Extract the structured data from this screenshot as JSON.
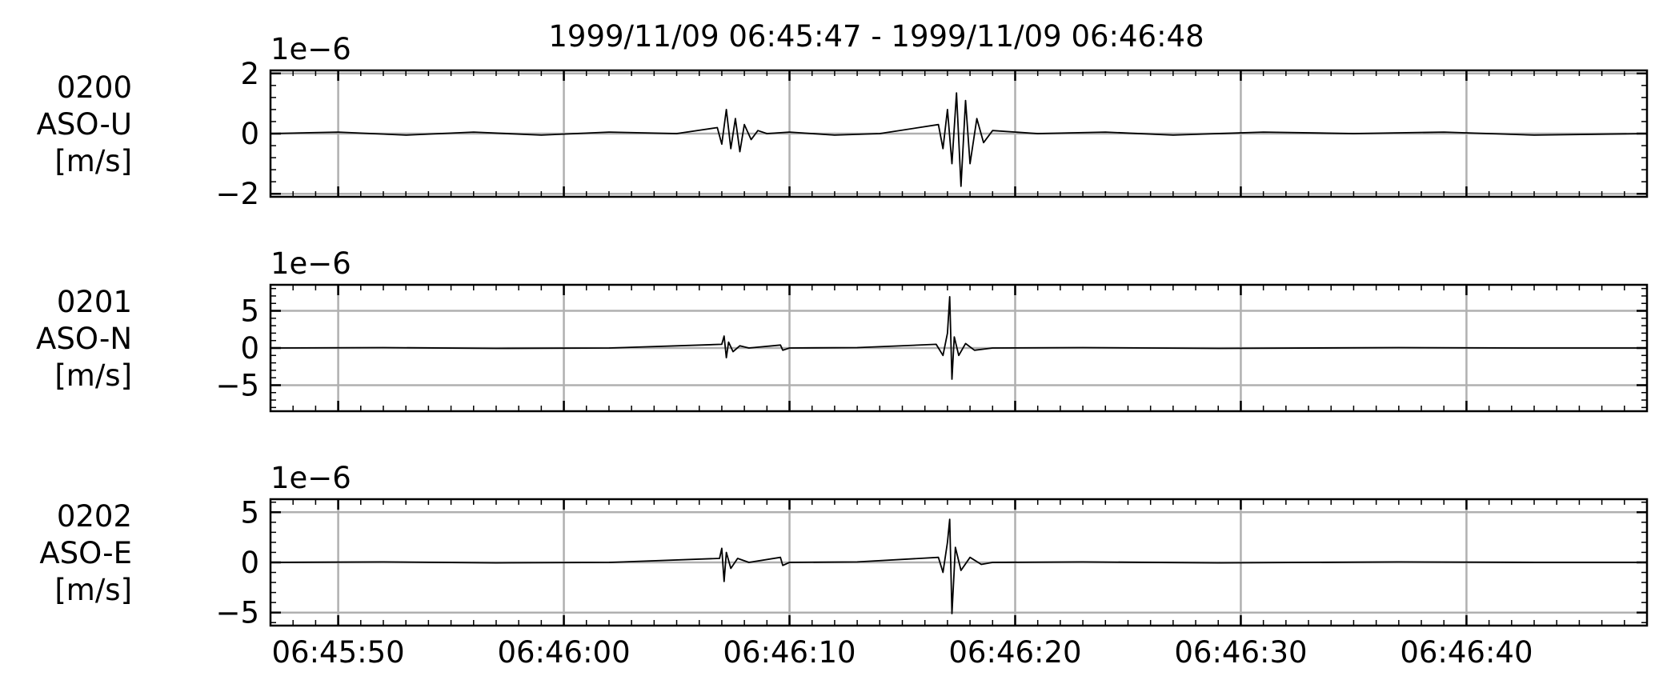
{
  "figure": {
    "title": "1999/11/09 06:45:47 - 1999/11/09 06:46:48"
  },
  "chart_data": [
    {
      "type": "line",
      "station_label": [
        "0200",
        "ASO-U",
        "[m/s]"
      ],
      "offset_text": "1e−6",
      "x_time_range": [
        "06:45:47",
        "06:46:48"
      ],
      "ylim": [
        -2.1,
        2.1
      ],
      "yticks": [
        -2,
        0,
        2
      ],
      "ytick_labels": [
        "−2",
        "0",
        "2"
      ],
      "grid": true,
      "color": "#000000",
      "series": [
        {
          "x": [
            0,
            3,
            6,
            9,
            12,
            15,
            18,
            19.8,
            20,
            20.2,
            20.4,
            20.6,
            20.8,
            21.0,
            21.3,
            21.6,
            22,
            23,
            25,
            27,
            29.6,
            29.8,
            30.0,
            30.2,
            30.4,
            30.6,
            30.8,
            31.0,
            31.3,
            31.6,
            32,
            34,
            37,
            40,
            44,
            48,
            52,
            56,
            61
          ],
          "y": [
            0.0,
            0.05,
            -0.05,
            0.05,
            -0.05,
            0.05,
            0.0,
            0.2,
            -0.35,
            0.8,
            -0.5,
            0.5,
            -0.6,
            0.3,
            -0.2,
            0.1,
            0.0,
            0.05,
            -0.05,
            0.0,
            0.3,
            -0.5,
            0.8,
            -1.0,
            1.35,
            -1.75,
            1.1,
            -1.0,
            0.5,
            -0.3,
            0.1,
            0.0,
            0.05,
            -0.05,
            0.05,
            0.0,
            0.05,
            -0.05,
            0.0
          ]
        }
      ]
    },
    {
      "type": "line",
      "station_label": [
        "0201",
        "ASO-N",
        "[m/s]"
      ],
      "offset_text": "1e−6",
      "x_time_range": [
        "06:45:47",
        "06:46:48"
      ],
      "ylim": [
        -8.5,
        8.5
      ],
      "yticks": [
        -5,
        0,
        5
      ],
      "ytick_labels": [
        "−5",
        "0",
        "5"
      ],
      "grid": true,
      "color": "#000000",
      "series": [
        {
          "x": [
            0,
            5,
            10,
            15,
            20.0,
            20.1,
            20.2,
            20.3,
            20.5,
            20.8,
            21.2,
            22.6,
            22.7,
            23,
            26,
            29.5,
            29.8,
            30.0,
            30.1,
            30.2,
            30.3,
            30.5,
            30.8,
            31.2,
            32,
            36,
            42,
            50,
            56,
            61
          ],
          "y": [
            0.0,
            0.05,
            -0.05,
            0.0,
            0.5,
            1.6,
            -1.3,
            0.8,
            -0.5,
            0.3,
            0.0,
            0.4,
            -0.3,
            0.0,
            0.05,
            0.5,
            -1.0,
            2.0,
            6.9,
            -4.2,
            1.5,
            -1.0,
            0.6,
            -0.3,
            0.0,
            0.05,
            -0.05,
            0.05,
            0.0,
            0.0
          ]
        }
      ]
    },
    {
      "type": "line",
      "station_label": [
        "0202",
        "ASO-E",
        "[m/s]"
      ],
      "offset_text": "1e−6",
      "x_time_range": [
        "06:45:47",
        "06:46:48"
      ],
      "ylim": [
        -6.3,
        6.3
      ],
      "yticks": [
        -5,
        0,
        5
      ],
      "ytick_labels": [
        "−5",
        "0",
        "5"
      ],
      "grid": true,
      "color": "#000000",
      "series": [
        {
          "x": [
            0,
            5,
            10,
            15,
            19.9,
            20.0,
            20.1,
            20.2,
            20.4,
            20.7,
            21.2,
            22.6,
            22.7,
            23,
            26,
            29.6,
            29.8,
            30.0,
            30.1,
            30.2,
            30.35,
            30.6,
            31.0,
            31.5,
            32,
            36,
            42,
            50,
            56,
            61
          ],
          "y": [
            0.0,
            0.05,
            -0.05,
            0.0,
            0.4,
            1.4,
            -1.9,
            1.0,
            -0.6,
            0.4,
            0.0,
            0.5,
            -0.3,
            0.0,
            0.05,
            0.5,
            -1.0,
            2.0,
            4.3,
            -5.1,
            1.5,
            -0.8,
            0.5,
            -0.2,
            0.0,
            0.05,
            -0.05,
            0.05,
            0.0,
            0.0
          ]
        }
      ]
    }
  ],
  "x_axis": {
    "ticks_seconds": [
      3,
      13,
      23,
      33,
      43,
      53
    ],
    "tick_labels": [
      "06:45:50",
      "06:46:00",
      "06:46:10",
      "06:46:20",
      "06:46:30",
      "06:46:40"
    ],
    "range_seconds": [
      0,
      61
    ]
  }
}
